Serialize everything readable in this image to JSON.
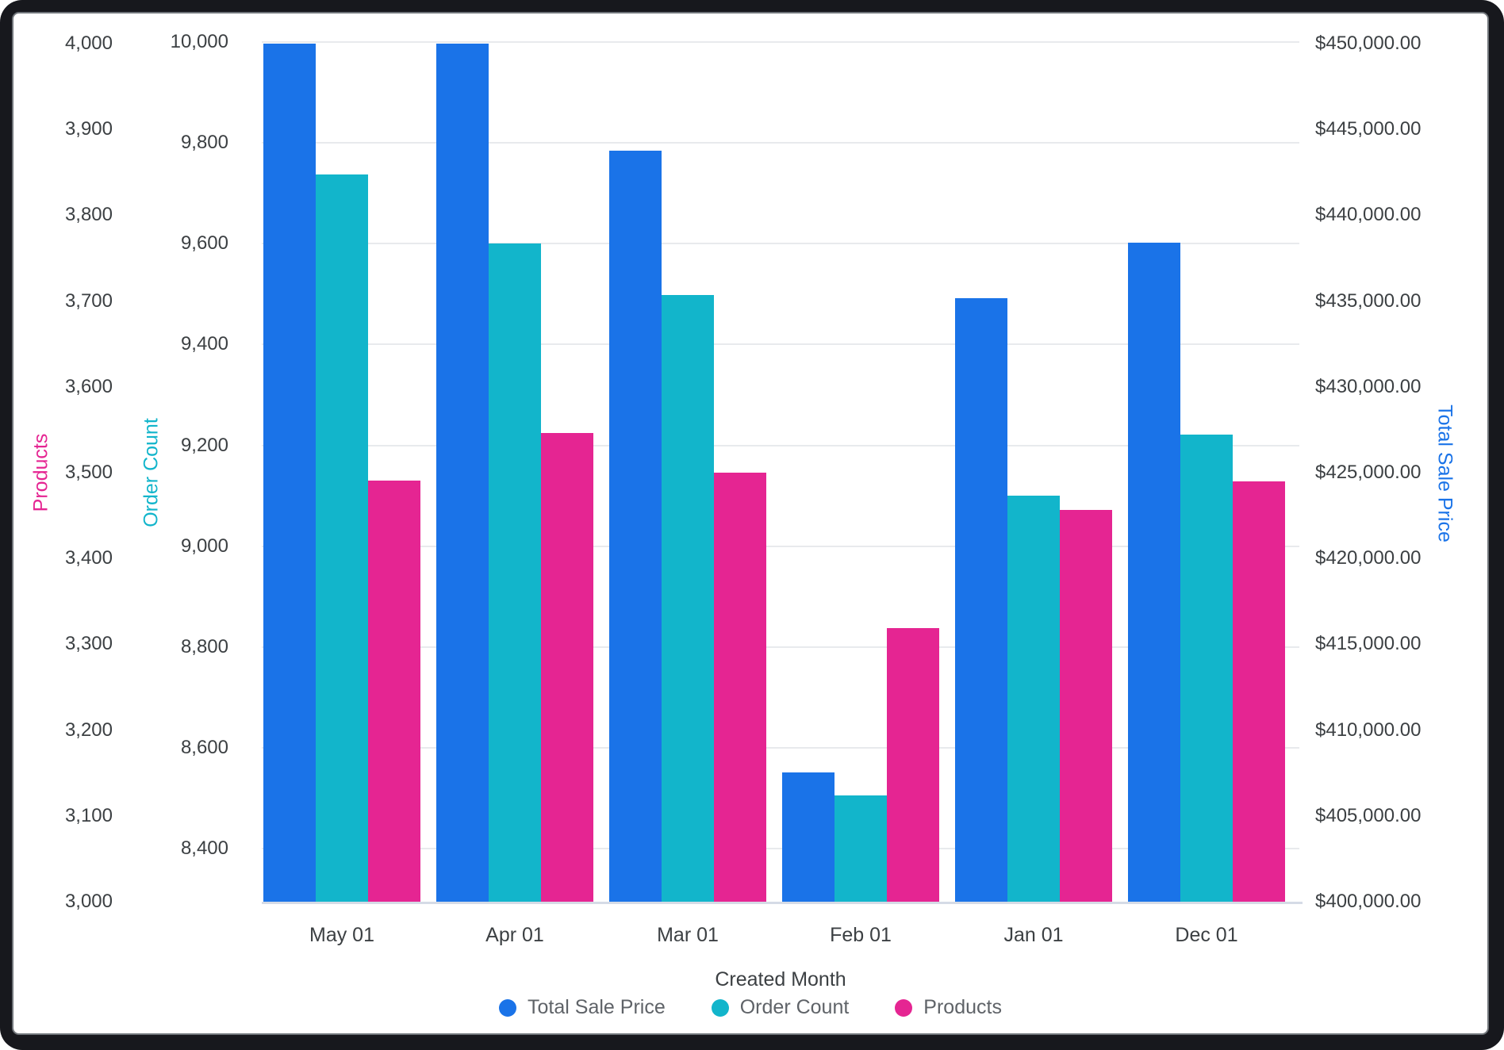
{
  "chart_data": {
    "type": "bar",
    "title": "",
    "xlabel": "Created Month",
    "categories": [
      "May 01",
      "Apr 01",
      "Mar 01",
      "Feb 01",
      "Jan 01",
      "Dec 01"
    ],
    "series": [
      {
        "name": "Total Sale Price",
        "axis": "price",
        "color": "#1A73E8",
        "values": [
          450000,
          450000,
          443750,
          407550,
          435150,
          438400
        ]
      },
      {
        "name": "Order Count",
        "axis": "order",
        "color": "#12B5CB",
        "values": [
          9737,
          9600,
          9498,
          8506,
          9100,
          9221
        ]
      },
      {
        "name": "Products",
        "axis": "products",
        "color": "#E52592",
        "values": [
          3491,
          3546,
          3500,
          3319,
          3457,
          3490
        ]
      }
    ],
    "axes": {
      "products": {
        "title": "Products",
        "color": "#E52592",
        "side": "left-outer",
        "ylim": [
          3000,
          4000
        ],
        "ticks": [
          "4,000",
          "3,900",
          "3,800",
          "3,700",
          "3,600",
          "3,500",
          "3,400",
          "3,300",
          "3,200",
          "3,100",
          "3,000"
        ],
        "tick_values": [
          4000,
          3900,
          3800,
          3700,
          3600,
          3500,
          3400,
          3300,
          3200,
          3100,
          3000
        ]
      },
      "order": {
        "title": "Order Count",
        "color": "#12B5CB",
        "side": "left-inner",
        "ylim": [
          8295,
          10000
        ],
        "ticks": [
          "10,000",
          "9,800",
          "9,600",
          "9,400",
          "9,200",
          "9,000",
          "8,800",
          "8,600",
          "8,400"
        ],
        "tick_values": [
          10000,
          9800,
          9600,
          9400,
          9200,
          9000,
          8800,
          8600,
          8400
        ]
      },
      "price": {
        "title": "Total Sale Price",
        "color": "#1A73E8",
        "side": "right",
        "ylim": [
          400000,
          450000
        ],
        "ticks": [
          "$450,000.00",
          "$445,000.00",
          "$440,000.00",
          "$435,000.00",
          "$430,000.00",
          "$425,000.00",
          "$420,000.00",
          "$415,000.00",
          "$410,000.00",
          "$405,000.00",
          "$400,000.00"
        ],
        "tick_values": [
          450000,
          445000,
          440000,
          435000,
          430000,
          425000,
          420000,
          415000,
          410000,
          405000,
          400000
        ]
      }
    },
    "legend": [
      "Total Sale Price",
      "Order Count",
      "Products"
    ],
    "legend_position": "bottom-center",
    "grid": "horizontal-on-order-axis-ticks",
    "colors": {
      "gridline": "#E8EAED",
      "axis_baseline": "#D5DBE6",
      "tick_text": "#3C4043",
      "legend_text": "#5F6368",
      "frame_background": "#17181D",
      "card_background": "#FFFFFF"
    }
  }
}
